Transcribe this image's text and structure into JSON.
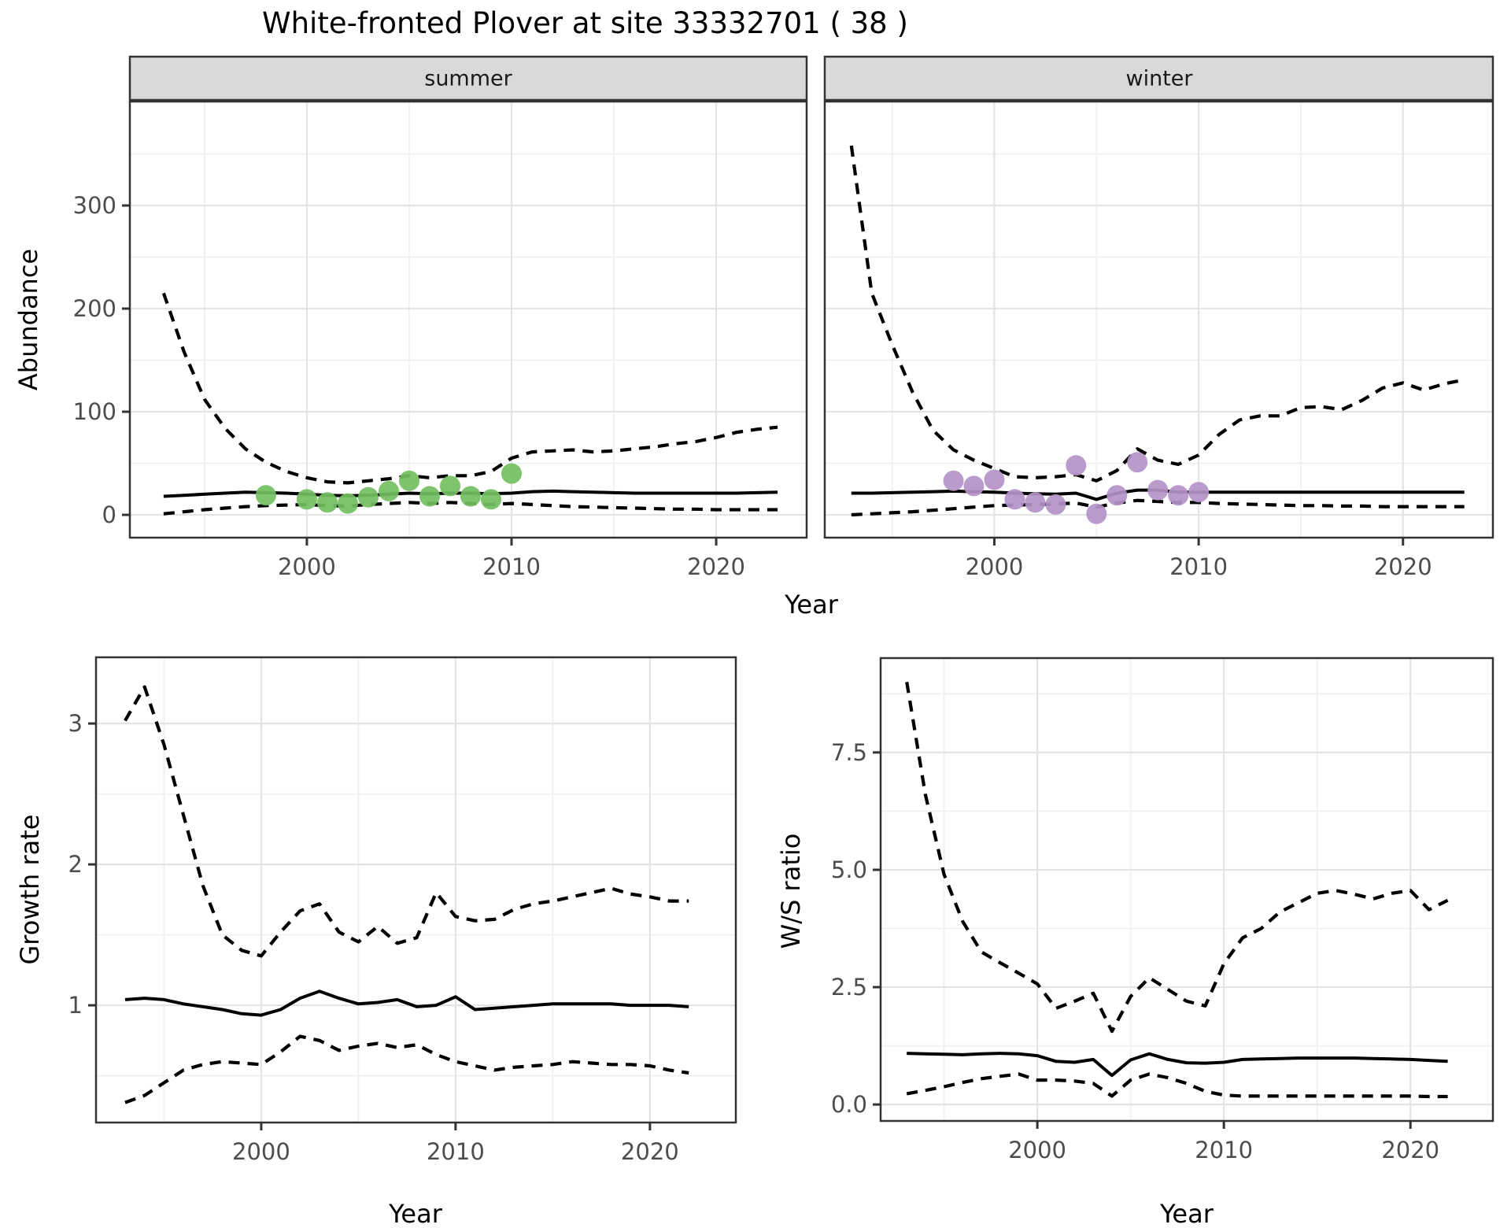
{
  "page": {
    "title": "White-fronted Plover at site 33332701 ( 38 )"
  },
  "colors": {
    "panel_bg": "#ffffff",
    "strip_bg": "#d9d9d9",
    "border": "#333333",
    "line": "#000000",
    "grid_major": "#e4e4e4",
    "grid_minor": "#f0f0f0",
    "tick_label": "#4d4d4d",
    "summer_point": "#72bf5f",
    "winter_point": "#b494c8"
  },
  "chart_data": [
    {
      "id": "abundance-summer",
      "type": "line+scatter",
      "facet_label": "summer",
      "x_axis": {
        "label": "Year",
        "lim": [
          1991.35,
          2024.42
        ],
        "ticks": {
          "values": [
            2000,
            2010,
            2020
          ],
          "labels": [
            "2000",
            "2010",
            "2020"
          ]
        },
        "minor": [
          1995,
          2005,
          2015
        ]
      },
      "y_axis": {
        "label": "Abundance",
        "lim": [
          -22.1,
          400.8
        ],
        "ticks": {
          "values": [
            0,
            100,
            200,
            300
          ],
          "labels": [
            "0",
            "100",
            "200",
            "300"
          ]
        },
        "minor": [
          50,
          150,
          250,
          350
        ]
      },
      "x": [
        1993,
        1994,
        1995,
        1996,
        1997,
        1998,
        1999,
        2000,
        2001,
        2002,
        2003,
        2004,
        2005,
        2006,
        2007,
        2008,
        2009,
        2010,
        2011,
        2012,
        2013,
        2014,
        2015,
        2016,
        2017,
        2018,
        2019,
        2020,
        2021,
        2022,
        2023
      ],
      "series": [
        {
          "name": "upper-95ci",
          "style": "dashed",
          "values": [
            215,
            158,
            112,
            84,
            64,
            51,
            42,
            36,
            32,
            31,
            33,
            35,
            38,
            36,
            38,
            38,
            42,
            55,
            61,
            62,
            63,
            61,
            62,
            64,
            66,
            69,
            71,
            75,
            80,
            83,
            85
          ]
        },
        {
          "name": "median",
          "style": "solid",
          "values": [
            18,
            19,
            20,
            21,
            22,
            21.5,
            21,
            20,
            19,
            18.5,
            19,
            20,
            21,
            20.5,
            21,
            21,
            20.5,
            21,
            22.5,
            23,
            22.5,
            22,
            21.5,
            21,
            21,
            21,
            21,
            21,
            21,
            21.5,
            22
          ]
        },
        {
          "name": "lower-95ci",
          "style": "dashed",
          "values": [
            1,
            3,
            5,
            6.5,
            8,
            9,
            9.5,
            10,
            9,
            8.5,
            10,
            11,
            12,
            11,
            12,
            11,
            10,
            11,
            10,
            9,
            8,
            7.5,
            7,
            6.5,
            6,
            5.5,
            5.5,
            5,
            5,
            5,
            5
          ]
        }
      ],
      "points": {
        "name": "observed-summer-counts",
        "color_key": "summer_point",
        "x": [
          1998,
          2000,
          2001,
          2002,
          2003,
          2004,
          2005,
          2006,
          2007,
          2008,
          2009,
          2010
        ],
        "y": [
          19,
          15,
          12,
          11,
          17,
          23,
          33,
          18,
          28,
          18,
          15,
          40
        ]
      }
    },
    {
      "id": "abundance-winter",
      "type": "line+scatter",
      "facet_label": "winter",
      "x_axis": {
        "label": "Year",
        "lim": [
          1991.7,
          2024.4
        ],
        "ticks": {
          "values": [
            2000,
            2010,
            2020
          ],
          "labels": [
            "2000",
            "2010",
            "2020"
          ]
        },
        "minor": [
          1995,
          2005,
          2015
        ]
      },
      "y_axis": {
        "label": "Abundance",
        "lim": [
          -22.1,
          400.8
        ],
        "ticks": {
          "values": [
            0,
            100,
            200,
            300
          ],
          "labels": [
            "0",
            "100",
            "200",
            "300"
          ]
        },
        "minor": [
          50,
          150,
          250,
          350
        ]
      },
      "x": [
        1993,
        1994,
        1995,
        1996,
        1997,
        1998,
        1999,
        2000,
        2001,
        2002,
        2003,
        2004,
        2005,
        2006,
        2007,
        2008,
        2009,
        2010,
        2011,
        2012,
        2013,
        2014,
        2015,
        2016,
        2017,
        2018,
        2019,
        2020,
        2021,
        2022,
        2023
      ],
      "series": [
        {
          "name": "upper-95ci",
          "style": "dashed",
          "values": [
            358,
            215,
            165,
            119,
            82,
            63,
            53,
            45,
            37,
            36,
            37,
            39,
            33,
            43,
            64,
            53,
            49,
            58,
            78,
            92,
            96,
            96,
            104,
            105,
            102,
            111,
            123,
            128,
            121,
            127,
            131
          ]
        },
        {
          "name": "median",
          "style": "solid",
          "values": [
            21,
            21,
            21.5,
            22,
            22.5,
            23,
            22.5,
            22,
            21,
            20.5,
            20,
            21,
            15,
            21,
            24,
            24,
            22,
            22,
            22,
            22,
            22,
            22,
            22,
            22,
            22,
            22,
            22,
            22,
            22,
            22,
            22
          ]
        },
        {
          "name": "lower-95ci",
          "style": "dashed",
          "values": [
            0,
            1,
            2,
            3,
            4.5,
            6,
            7.5,
            9,
            9.5,
            10,
            10.5,
            11.5,
            7.5,
            11.5,
            14,
            13,
            12,
            12,
            11,
            10.5,
            10,
            9.5,
            9,
            9,
            8.5,
            8.5,
            8,
            8,
            8,
            8,
            8
          ]
        }
      ],
      "points": {
        "name": "observed-winter-counts",
        "color_key": "winter_point",
        "x": [
          1998,
          1999,
          2000,
          2001,
          2002,
          2003,
          2004,
          2005,
          2006,
          2007,
          2008,
          2009,
          2010
        ],
        "y": [
          33,
          28,
          34,
          15,
          12,
          10,
          48,
          1,
          19,
          51,
          24,
          19,
          22
        ]
      }
    },
    {
      "id": "growth-rate",
      "type": "line",
      "facet_label": "",
      "x_axis": {
        "label": "Year",
        "lim": [
          1991.5,
          2024.42
        ],
        "ticks": {
          "values": [
            2000,
            2010,
            2020
          ],
          "labels": [
            "2000",
            "2010",
            "2020"
          ]
        },
        "minor": [
          1995,
          2005,
          2015
        ]
      },
      "y_axis": {
        "label": "Growth rate",
        "lim": [
          0.168,
          3.47
        ],
        "ticks": {
          "values": [
            1,
            2,
            3
          ],
          "labels": [
            "1",
            "2",
            "3"
          ]
        },
        "minor": [
          0.5,
          1.5,
          2.5
        ]
      },
      "x": [
        1993,
        1994,
        1995,
        1996,
        1997,
        1998,
        1999,
        2000,
        2001,
        2002,
        2003,
        2004,
        2005,
        2006,
        2007,
        2008,
        2009,
        2010,
        2011,
        2012,
        2013,
        2014,
        2015,
        2016,
        2017,
        2018,
        2019,
        2020,
        2021,
        2022
      ],
      "series": [
        {
          "name": "upper-95ci",
          "style": "dashed",
          "values": [
            3.02,
            3.26,
            2.85,
            2.35,
            1.85,
            1.5,
            1.39,
            1.35,
            1.52,
            1.67,
            1.72,
            1.52,
            1.45,
            1.56,
            1.44,
            1.48,
            1.8,
            1.63,
            1.6,
            1.61,
            1.68,
            1.72,
            1.74,
            1.77,
            1.8,
            1.83,
            1.79,
            1.77,
            1.74,
            1.74
          ]
        },
        {
          "name": "median",
          "style": "solid",
          "values": [
            1.04,
            1.05,
            1.04,
            1.01,
            0.99,
            0.97,
            0.94,
            0.93,
            0.97,
            1.05,
            1.1,
            1.05,
            1.01,
            1.02,
            1.04,
            0.99,
            1.0,
            1.06,
            0.97,
            0.98,
            0.99,
            1.0,
            1.01,
            1.01,
            1.01,
            1.01,
            1.0,
            1.0,
            1.0,
            0.99
          ]
        },
        {
          "name": "lower-95ci",
          "style": "dashed",
          "values": [
            0.31,
            0.36,
            0.45,
            0.54,
            0.58,
            0.6,
            0.59,
            0.58,
            0.67,
            0.78,
            0.75,
            0.68,
            0.71,
            0.73,
            0.7,
            0.72,
            0.65,
            0.6,
            0.57,
            0.54,
            0.56,
            0.57,
            0.58,
            0.6,
            0.59,
            0.58,
            0.58,
            0.57,
            0.54,
            0.52
          ]
        }
      ],
      "points": null
    },
    {
      "id": "ws-ratio",
      "type": "line",
      "facet_label": "",
      "x_axis": {
        "label": "Year",
        "lim": [
          1991.6,
          2024.42
        ],
        "ticks": {
          "values": [
            2000,
            2010,
            2020
          ],
          "labels": [
            "2000",
            "2010",
            "2020"
          ]
        },
        "minor": [
          1995,
          2005,
          2015
        ]
      },
      "y_axis": {
        "label": "W/S ratio",
        "lim": [
          -0.35,
          9.51
        ],
        "ticks": {
          "values": [
            0,
            2.5,
            5,
            7.5
          ],
          "labels": [
            "0.0",
            "2.5",
            "5.0",
            "7.5"
          ]
        },
        "minor": [
          1.25,
          3.75,
          6.25,
          8.75
        ]
      },
      "x": [
        1993,
        1994,
        1995,
        1996,
        1997,
        1998,
        1999,
        2000,
        2001,
        2002,
        2003,
        2004,
        2005,
        2006,
        2007,
        2008,
        2009,
        2010,
        2011,
        2012,
        2013,
        2014,
        2015,
        2016,
        2017,
        2018,
        2019,
        2020,
        2021,
        2022
      ],
      "series": [
        {
          "name": "upper-95ci",
          "style": "dashed",
          "values": [
            9.0,
            6.6,
            4.9,
            3.9,
            3.25,
            3.02,
            2.8,
            2.57,
            2.05,
            2.2,
            2.37,
            1.56,
            2.3,
            2.7,
            2.45,
            2.2,
            2.1,
            3.0,
            3.55,
            3.75,
            4.1,
            4.3,
            4.5,
            4.56,
            4.48,
            4.38,
            4.5,
            4.56,
            4.15,
            4.35
          ]
        },
        {
          "name": "median",
          "style": "solid",
          "values": [
            1.09,
            1.08,
            1.07,
            1.06,
            1.08,
            1.09,
            1.08,
            1.04,
            0.92,
            0.9,
            0.96,
            0.62,
            0.95,
            1.08,
            0.96,
            0.89,
            0.88,
            0.9,
            0.96,
            0.97,
            0.98,
            0.99,
            0.99,
            0.99,
            0.99,
            0.98,
            0.97,
            0.96,
            0.94,
            0.92
          ]
        },
        {
          "name": "lower-95ci",
          "style": "dashed",
          "values": [
            0.23,
            0.3,
            0.38,
            0.47,
            0.55,
            0.6,
            0.65,
            0.52,
            0.52,
            0.5,
            0.45,
            0.18,
            0.52,
            0.65,
            0.57,
            0.45,
            0.28,
            0.2,
            0.18,
            0.18,
            0.18,
            0.18,
            0.18,
            0.18,
            0.18,
            0.18,
            0.18,
            0.18,
            0.17,
            0.17
          ]
        }
      ],
      "points": null
    }
  ]
}
